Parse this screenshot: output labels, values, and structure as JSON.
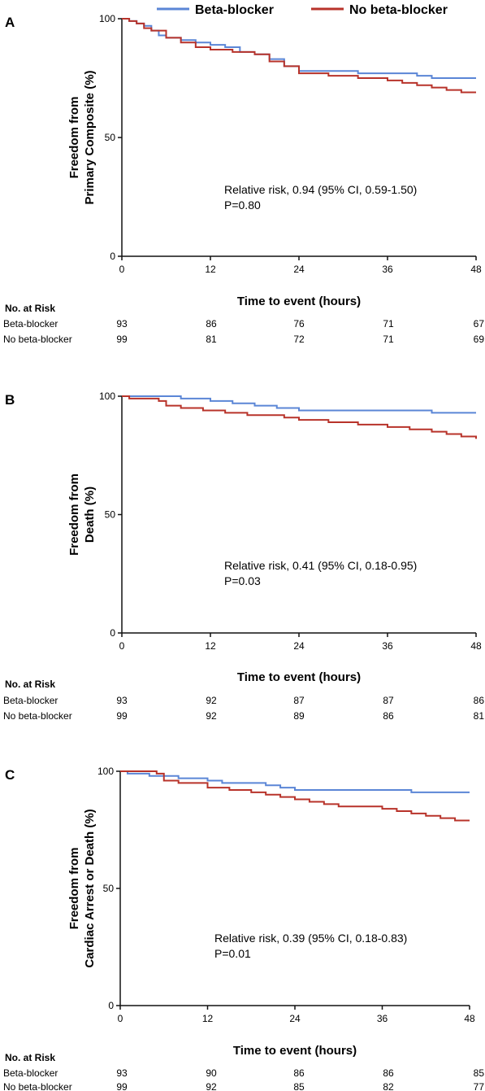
{
  "colors": {
    "beta_blocker": "#5b86d6",
    "no_beta_blocker": "#b8332a",
    "axis": "#111111"
  },
  "legend": {
    "items": [
      {
        "label": "Beta-blocker",
        "color": "#5b86d6"
      },
      {
        "label": "No beta-blocker",
        "color": "#b8332a"
      }
    ],
    "placement": "top-right"
  },
  "risk_table_header": "No. at Risk",
  "chart_data": [
    {
      "type": "line",
      "step": true,
      "panel_label": "A",
      "ylabel_lines": [
        "Freedom from",
        "Primary Composite (%)"
      ],
      "xlabel": "Time to event (hours)",
      "xlim": [
        0,
        48
      ],
      "ylim": [
        0,
        100
      ],
      "xticks": [
        "0",
        "12",
        "24",
        "36",
        "48"
      ],
      "yticks": [
        "0",
        "50",
        "100"
      ],
      "grid": false,
      "annotation": [
        "Relative risk, 0.94 (95% CI, 0.59-1.50)",
        "P=0.80"
      ],
      "series": [
        {
          "name": "Beta-blocker",
          "x": [
            0,
            1,
            2,
            3,
            4,
            5,
            6,
            8,
            10,
            12,
            14,
            16,
            18,
            20,
            22,
            24,
            28,
            32,
            36,
            40,
            42,
            48
          ],
          "y": [
            100,
            99,
            98,
            97,
            95,
            93,
            92,
            91,
            90,
            89,
            88,
            86,
            85,
            83,
            80,
            78,
            78,
            77,
            77,
            76,
            75,
            75
          ]
        },
        {
          "name": "No beta-blocker",
          "x": [
            0,
            1,
            2,
            3,
            4,
            6,
            8,
            10,
            12,
            15,
            18,
            20,
            22,
            24,
            28,
            32,
            36,
            38,
            40,
            42,
            44,
            46,
            48
          ],
          "y": [
            100,
            99,
            98,
            96,
            95,
            92,
            90,
            88,
            87,
            86,
            85,
            82,
            80,
            77,
            76,
            75,
            74,
            73,
            72,
            71,
            70,
            69,
            69
          ]
        }
      ],
      "risk_table": [
        {
          "label": "Beta-blocker",
          "values": [
            "93",
            "86",
            "76",
            "71",
            "67"
          ]
        },
        {
          "label": "No beta-blocker",
          "values": [
            "99",
            "81",
            "72",
            "71",
            "69"
          ]
        }
      ]
    },
    {
      "type": "line",
      "step": true,
      "panel_label": "B",
      "ylabel_lines": [
        "Freedom from",
        "Death (%)"
      ],
      "xlabel": "Time to event (hours)",
      "xlim": [
        0,
        48
      ],
      "ylim": [
        0,
        100
      ],
      "xticks": [
        "0",
        "12",
        "24",
        "36",
        "48"
      ],
      "yticks": [
        "0",
        "50",
        "100"
      ],
      "grid": false,
      "annotation": [
        "Relative risk, 0.41 (95% CI, 0.18-0.95)",
        "P=0.03"
      ],
      "series": [
        {
          "name": "Beta-blocker",
          "x": [
            0,
            8,
            12,
            15,
            18,
            21,
            24,
            36,
            42,
            48
          ],
          "y": [
            100,
            99,
            98,
            97,
            96,
            95,
            94,
            94,
            93,
            93
          ]
        },
        {
          "name": "No beta-blocker",
          "x": [
            0,
            1,
            5,
            6,
            8,
            11,
            14,
            17,
            22,
            24,
            28,
            32,
            36,
            39,
            42,
            44,
            46,
            48
          ],
          "y": [
            100,
            99,
            98,
            96,
            95,
            94,
            93,
            92,
            91,
            90,
            89,
            88,
            87,
            86,
            85,
            84,
            83,
            82
          ]
        }
      ],
      "risk_table": [
        {
          "label": "Beta-blocker",
          "values": [
            "93",
            "92",
            "87",
            "87",
            "86"
          ]
        },
        {
          "label": "No beta-blocker",
          "values": [
            "99",
            "92",
            "89",
            "86",
            "81"
          ]
        }
      ]
    },
    {
      "type": "line",
      "step": true,
      "panel_label": "C",
      "ylabel_lines": [
        "Freedom from",
        "Cardiac Arrest or Death (%)"
      ],
      "xlabel": "Time to event (hours)",
      "xlim": [
        0,
        48
      ],
      "ylim": [
        0,
        100
      ],
      "xticks": [
        "0",
        "12",
        "24",
        "36",
        "48"
      ],
      "yticks": [
        "0",
        "50",
        "100"
      ],
      "grid": false,
      "annotation": [
        "Relative risk, 0.39 (95% CI, 0.18-0.83)",
        "P=0.01"
      ],
      "series": [
        {
          "name": "Beta-blocker",
          "x": [
            0,
            1,
            4,
            8,
            12,
            14,
            16,
            20,
            22,
            24,
            36,
            40,
            48
          ],
          "y": [
            100,
            99,
            98,
            97,
            96,
            95,
            95,
            94,
            93,
            92,
            92,
            91,
            91
          ]
        },
        {
          "name": "No beta-blocker",
          "x": [
            0,
            5,
            6,
            8,
            12,
            15,
            18,
            20,
            22,
            24,
            26,
            28,
            30,
            36,
            38,
            40,
            42,
            44,
            46,
            48
          ],
          "y": [
            100,
            99,
            96,
            95,
            93,
            92,
            91,
            90,
            89,
            88,
            87,
            86,
            85,
            84,
            83,
            82,
            81,
            80,
            79,
            79
          ]
        }
      ],
      "risk_table": [
        {
          "label": "Beta-blocker",
          "values": [
            "93",
            "90",
            "86",
            "86",
            "85"
          ]
        },
        {
          "label": "No beta-blocker",
          "values": [
            "99",
            "92",
            "85",
            "82",
            "77"
          ]
        }
      ]
    }
  ]
}
